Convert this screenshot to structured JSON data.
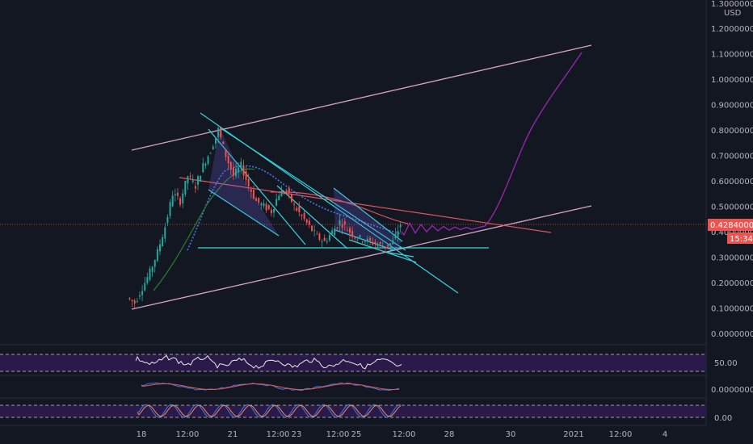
{
  "currency": "USD",
  "price_axis": {
    "top_label": "1.30000000",
    "ticks": [
      "1.20000000",
      "1.10000000",
      "1.00000000",
      "0.90000000",
      "0.80000000",
      "0.70000000",
      "0.60000000",
      "0.50000000",
      "0.40000000",
      "0.30000000",
      "0.20000000",
      "0.10000000",
      "0.00000000"
    ]
  },
  "current_price": {
    "value": "0.42840000",
    "countdown": "15:34",
    "color": "#ef5350"
  },
  "time_axis": [
    "18",
    "12:00",
    "21",
    "12:00",
    "23",
    "12:00",
    "25",
    "12:00",
    "28",
    "30",
    "2021",
    "12:00",
    "4"
  ],
  "indicators": {
    "rsi_label": "50.00",
    "macd_label": "0.00000000",
    "stoch_label": "0.00"
  },
  "colors": {
    "background": "#131722",
    "up": "#26a69a",
    "down": "#ef5350",
    "channel": "#d7a4c3",
    "triangle": "#33d7e0",
    "projection": "#9c27b0",
    "red_line": "#e05560",
    "band": "#2a1a4a"
  },
  "chart_data": {
    "type": "candlestick",
    "ylim": [
      0,
      1.3
    ],
    "grid": false,
    "price_path": [
      [
        0,
        0.14
      ],
      [
        1,
        0.12
      ],
      [
        2,
        0.18
      ],
      [
        3,
        0.24
      ],
      [
        4,
        0.32
      ],
      [
        5,
        0.42
      ],
      [
        6,
        0.55
      ],
      [
        7,
        0.52
      ],
      [
        8,
        0.62
      ],
      [
        9,
        0.58
      ],
      [
        10,
        0.66
      ],
      [
        11,
        0.72
      ],
      [
        12,
        0.8
      ],
      [
        13,
        0.7
      ],
      [
        14,
        0.62
      ],
      [
        15,
        0.66
      ],
      [
        16,
        0.58
      ],
      [
        17,
        0.52
      ],
      [
        18,
        0.5
      ],
      [
        19,
        0.48
      ],
      [
        20,
        0.55
      ],
      [
        21,
        0.56
      ],
      [
        22,
        0.5
      ],
      [
        23,
        0.46
      ],
      [
        24,
        0.42
      ],
      [
        25,
        0.38
      ],
      [
        26,
        0.36
      ],
      [
        27,
        0.4
      ],
      [
        28,
        0.44
      ],
      [
        29,
        0.41
      ],
      [
        30,
        0.38
      ],
      [
        31,
        0.37
      ],
      [
        32,
        0.36
      ],
      [
        33,
        0.35
      ],
      [
        34,
        0.34
      ],
      [
        35,
        0.36
      ],
      [
        36,
        0.43
      ]
    ],
    "projection_path": [
      [
        36,
        0.43
      ],
      [
        38,
        0.44
      ],
      [
        40,
        0.43
      ],
      [
        42,
        0.435
      ],
      [
        44,
        0.43
      ],
      [
        46,
        0.45
      ],
      [
        48,
        0.5
      ],
      [
        50,
        0.68
      ],
      [
        52,
        0.85
      ],
      [
        54,
        1.0
      ],
      [
        56,
        1.11
      ]
    ]
  }
}
